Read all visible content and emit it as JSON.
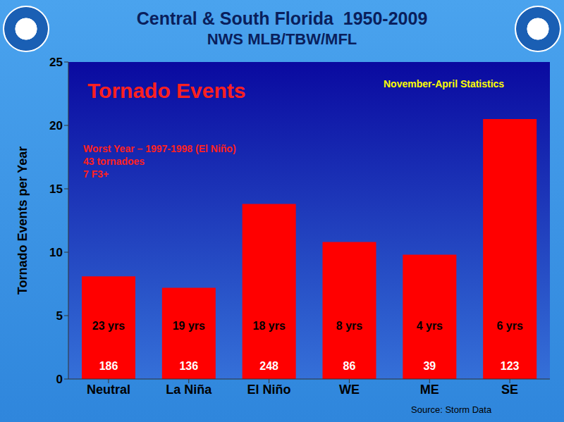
{
  "chart_data": {
    "type": "bar",
    "title": "Central & South Florida  1950-2009",
    "subtitle": "NWS MLB/TBW/MFL",
    "y_label": "Tornado Events per Year",
    "annotations": [
      "Tornado Events",
      "November-April Statistics",
      "Worst Year – 1997-1998 (El Niño)",
      "43 tornadoes",
      "7 F3+"
    ],
    "source": "Source: Storm Data",
    "categories": [
      "Neutral",
      "La Niña",
      "El Niño",
      "WE",
      "ME",
      "SE"
    ],
    "values": [
      8.1,
      7.2,
      13.8,
      10.8,
      9.8,
      20.5
    ],
    "years": [
      "23 yrs",
      "19 yrs",
      "18 yrs",
      "8 yrs",
      "4 yrs",
      "6 yrs"
    ],
    "counts": [
      186,
      136,
      248,
      86,
      39,
      123
    ],
    "color": "#ff0000",
    "ylim": [
      0,
      25
    ],
    "yticks": [
      0,
      5,
      10,
      15,
      20,
      25
    ],
    "grid": false
  }
}
